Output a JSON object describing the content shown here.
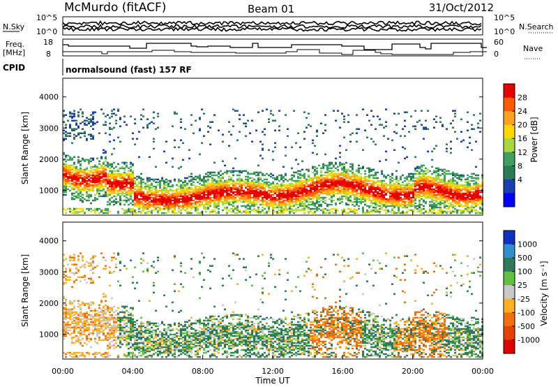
{
  "header": {
    "station": "McMurdo (fitACF)",
    "beam": "Beam 01",
    "date": "31/Oct/2012"
  },
  "strip_panels": {
    "nsky": {
      "label": "N.Sky",
      "ticks": [
        "10^5",
        "10^0"
      ],
      "right_label": "N.Search",
      "right_ticks": [
        "10^5",
        "10^0"
      ]
    },
    "freq": {
      "label_line1": "Freq.",
      "label_line2": "[MHz]",
      "ticks": [
        "18",
        "8"
      ],
      "right_label": "Nave",
      "right_ticks": [
        "60",
        "0"
      ]
    },
    "cpid": {
      "label": "CPID",
      "value": "normalsound (fast) 157 RF"
    }
  },
  "chart_data": [
    {
      "type": "heatmap",
      "name": "power",
      "ylabel": "Slant Range [km]",
      "yticks": [
        "4000",
        "3000",
        "2000",
        "1000"
      ],
      "ylim": [
        200,
        4600
      ],
      "xlim_hours": [
        0,
        24
      ],
      "colorbar": {
        "label": "Power [dB]",
        "ticks": [
          "28",
          "24",
          "20",
          "16",
          "12",
          "8",
          "4"
        ],
        "colors": [
          "#e80000",
          "#ff5a00",
          "#ffa020",
          "#ffd800",
          "#a8d840",
          "#40a060",
          "#2b7b55",
          "#1a3fb0",
          "#0000ff"
        ]
      }
    },
    {
      "type": "heatmap",
      "name": "velocity",
      "ylabel": "Slant Range [km]",
      "yticks": [
        "4000",
        "3000",
        "2000",
        "1000"
      ],
      "ylim": [
        200,
        4600
      ],
      "xlim_hours": [
        0,
        24
      ],
      "xlabel": "Time UT",
      "xticks": [
        "00:00",
        "04:00",
        "08:00",
        "12:00",
        "16:00",
        "20:00",
        "00:00"
      ],
      "colorbar": {
        "label": "Velocity [m s⁻¹]",
        "ticks": [
          "1000",
          "500",
          "100",
          "25",
          "-25",
          "-100",
          "-500",
          "-1000"
        ],
        "colors": [
          "#1030c0",
          "#3090d0",
          "#2f7a5a",
          "#60c040",
          "#c8c8c8",
          "#ffb020",
          "#f07010",
          "#e84000",
          "#e00000"
        ]
      }
    }
  ],
  "colors": {
    "fill_rgb": "#ffffff",
    "axis": "#000000"
  }
}
